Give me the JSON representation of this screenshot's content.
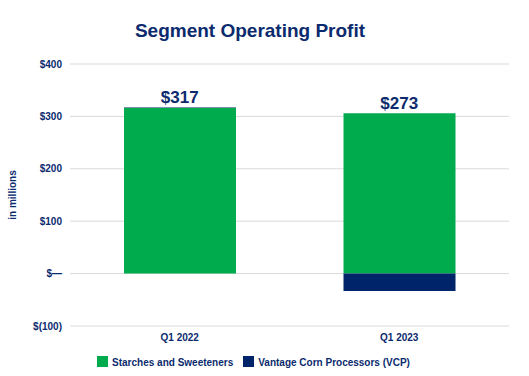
{
  "chart_data": {
    "type": "bar",
    "title": "Segment Operating Profit",
    "y_label": "in millions",
    "categories": [
      "Q1 2022",
      "Q1 2023"
    ],
    "series": [
      {
        "name": "Starches and Sweeteners",
        "color": "#00AB4E",
        "values": [
          316,
          306
        ]
      },
      {
        "name": "Vantage Corn Processors (VCP)",
        "color": "#002469",
        "values": [
          1,
          -33
        ]
      }
    ],
    "stacked": true,
    "ylim": [
      -100,
      400
    ],
    "yticks": [
      {
        "value": -100,
        "label": "$(100)"
      },
      {
        "value": 0,
        "label": "$—"
      },
      {
        "value": 100,
        "label": "$100"
      },
      {
        "value": 200,
        "label": "$200"
      },
      {
        "value": 300,
        "label": "$300"
      },
      {
        "value": 400,
        "label": "$400"
      }
    ],
    "grid": true,
    "legend": "bottom",
    "annotations": [
      {
        "x": "Q1 2022",
        "text": "$317"
      },
      {
        "x": "Q1 2023",
        "text": "$273"
      }
    ]
  }
}
